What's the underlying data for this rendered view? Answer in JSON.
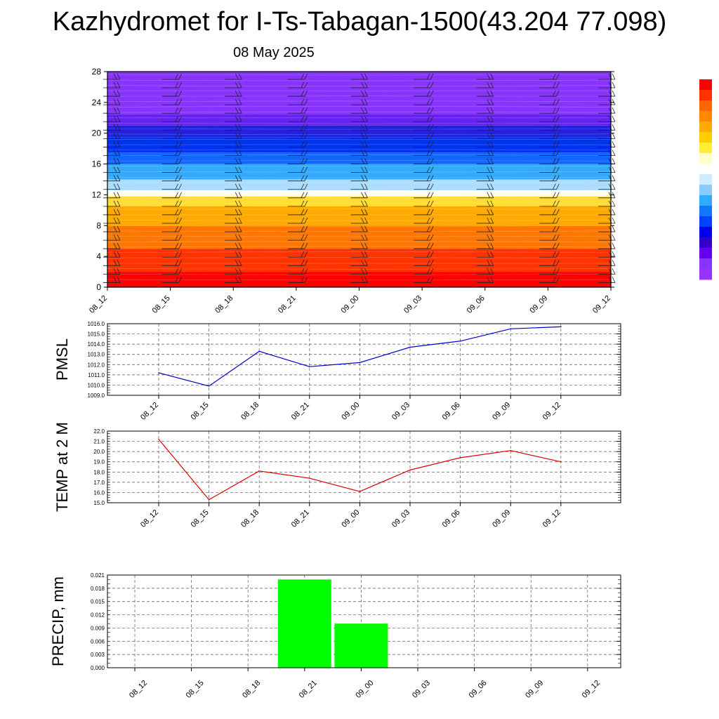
{
  "title": "Kazhydromet for I-Ts-Tabagan-1500(43.204 77.098)",
  "subtitle": "08 May 2025",
  "chart_data": [
    {
      "type": "heatmap",
      "name": "vertical-cross-section",
      "x_tick_labels": [
        "08_12",
        "08_15",
        "08_18",
        "08_21",
        "09_00",
        "09_03",
        "09_06",
        "09_09",
        "09_12"
      ],
      "y_ticks": [
        0,
        4,
        8,
        12,
        16,
        20,
        24,
        28
      ],
      "ylim": [
        0,
        28
      ],
      "colorbar_colors": [
        "#ff0000",
        "#ff3300",
        "#ff6600",
        "#ff8800",
        "#ffaa00",
        "#ffcc00",
        "#ffee33",
        "#ffffcc",
        "#ffffff",
        "#cceeff",
        "#88ccff",
        "#33aaff",
        "#1177ff",
        "#0044ff",
        "#0000ee",
        "#3300cc",
        "#6600ee",
        "#8833ff",
        "#9933ff"
      ],
      "layers": [
        {
          "from": 0,
          "to": 2,
          "color": "#ff0000"
        },
        {
          "from": 2,
          "to": 5,
          "color": "#ff3300"
        },
        {
          "from": 5,
          "to": 8,
          "color": "#ff7700"
        },
        {
          "from": 8,
          "to": 10.5,
          "color": "#ffaa00"
        },
        {
          "from": 10.5,
          "to": 11.8,
          "color": "#ffdd33"
        },
        {
          "from": 11.8,
          "to": 12.6,
          "color": "#fffff0"
        },
        {
          "from": 12.6,
          "to": 14,
          "color": "#aaddff"
        },
        {
          "from": 14,
          "to": 16,
          "color": "#33aaff"
        },
        {
          "from": 16,
          "to": 17.5,
          "color": "#1166ff"
        },
        {
          "from": 17.5,
          "to": 19.5,
          "color": "#0033ee"
        },
        {
          "from": 19.5,
          "to": 21,
          "color": "#2222dd"
        },
        {
          "from": 21,
          "to": 22.5,
          "color": "#6622ee"
        },
        {
          "from": 22.5,
          "to": 28,
          "color": "#8833ff"
        }
      ],
      "wind_barb_times": [
        "08_12",
        "08_15",
        "08_18",
        "08_21",
        "09_00",
        "09_03",
        "09_06",
        "09_09",
        "09_12"
      ]
    },
    {
      "type": "line",
      "name": "pmsl",
      "ylabel": "PMSL",
      "categories": [
        "08_12",
        "08_15",
        "08_18",
        "08_21",
        "09_00",
        "09_03",
        "09_06",
        "09_09",
        "09_12"
      ],
      "values": [
        1011.2,
        1009.9,
        1013.3,
        1011.8,
        1012.2,
        1013.7,
        1014.3,
        1015.5,
        1015.7
      ],
      "ylim": [
        1009.0,
        1016.0
      ],
      "y_ticks": [
        "1009.0",
        "1010.0",
        "1011.0",
        "1012.0",
        "1013.0",
        "1014.0",
        "1015.0",
        "1016.0"
      ],
      "color": "#0000cc",
      "grid": true
    },
    {
      "type": "line",
      "name": "temp2m",
      "ylabel": "TEMP at 2 M",
      "categories": [
        "08_12",
        "08_15",
        "08_18",
        "08_21",
        "09_00",
        "09_03",
        "09_06",
        "09_09",
        "09_12"
      ],
      "values": [
        21.2,
        15.3,
        18.1,
        17.4,
        16.1,
        18.2,
        19.4,
        20.1,
        19.0
      ],
      "ylim": [
        15.0,
        22.0
      ],
      "y_ticks": [
        "15.0",
        "16.0",
        "17.0",
        "18.0",
        "19.0",
        "20.0",
        "21.0",
        "22.0"
      ],
      "color": "#dd0000",
      "grid": true
    },
    {
      "type": "bar",
      "name": "precip",
      "ylabel": "PRECIP, mm",
      "categories": [
        "08_12",
        "08_15",
        "08_18",
        "08_21",
        "09_00",
        "09_03",
        "09_06",
        "09_09",
        "09_12"
      ],
      "values": [
        0,
        0,
        0,
        0.02,
        0.01,
        0,
        0,
        0,
        0
      ],
      "ylim": [
        0,
        0.021
      ],
      "y_ticks": [
        "0.000",
        "0.003",
        "0.006",
        "0.009",
        "0.012",
        "0.015",
        "0.018",
        "0.021"
      ],
      "color": "#00ff00",
      "grid": true
    }
  ]
}
